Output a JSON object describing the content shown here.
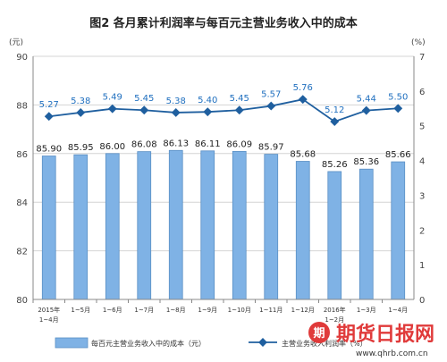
{
  "chart_data": {
    "type": "bar",
    "title": "图2 各月累计利润率与每百元主营业务收入中的成本",
    "left_unit": "(元)",
    "right_unit": "(%)",
    "categories": [
      [
        "2015年",
        "1~4月"
      ],
      [
        "1~5月"
      ],
      [
        "1~6月"
      ],
      [
        "1~7月"
      ],
      [
        "1~8月"
      ],
      [
        "1~9月"
      ],
      [
        "1~10月"
      ],
      [
        "1~11月"
      ],
      [
        "1~12月"
      ],
      [
        "2016年",
        "1~2月"
      ],
      [
        "1~3月"
      ],
      [
        "1~4月"
      ]
    ],
    "y_left": {
      "min": 80,
      "max": 90,
      "ticks": [
        80,
        82,
        84,
        86,
        88,
        90
      ]
    },
    "y_right": {
      "min": 0,
      "max": 7,
      "ticks": [
        0,
        1,
        2,
        3,
        4,
        5,
        6,
        7
      ]
    },
    "grid": true,
    "legend_position": "bottom",
    "series": [
      {
        "name": "每百元主营业务收入中的成本（元）",
        "type": "bar",
        "axis": "left",
        "color": "#7fb2e5",
        "values": [
          85.9,
          85.95,
          86.0,
          86.08,
          86.13,
          86.11,
          86.09,
          85.97,
          85.68,
          85.26,
          85.36,
          85.66
        ],
        "labels": [
          "85.90",
          "85.95",
          "86.00",
          "86.08",
          "86.13",
          "86.11",
          "86.09",
          "85.97",
          "85.68",
          "85.26",
          "85.36",
          "85.66"
        ]
      },
      {
        "name": "主营业务收入利润率（%）",
        "type": "line",
        "axis": "right",
        "color": "#1f5f9f",
        "values": [
          5.27,
          5.38,
          5.49,
          5.45,
          5.38,
          5.4,
          5.45,
          5.57,
          5.76,
          5.12,
          5.44,
          5.5
        ],
        "labels": [
          "5.27",
          "5.38",
          "5.49",
          "5.45",
          "5.38",
          "5.40",
          "5.45",
          "5.57",
          "5.76",
          "5.12",
          "5.44",
          "5.50"
        ]
      }
    ]
  },
  "watermark": {
    "text": "期货日报网",
    "url": "www.qhrb.com.cn"
  }
}
